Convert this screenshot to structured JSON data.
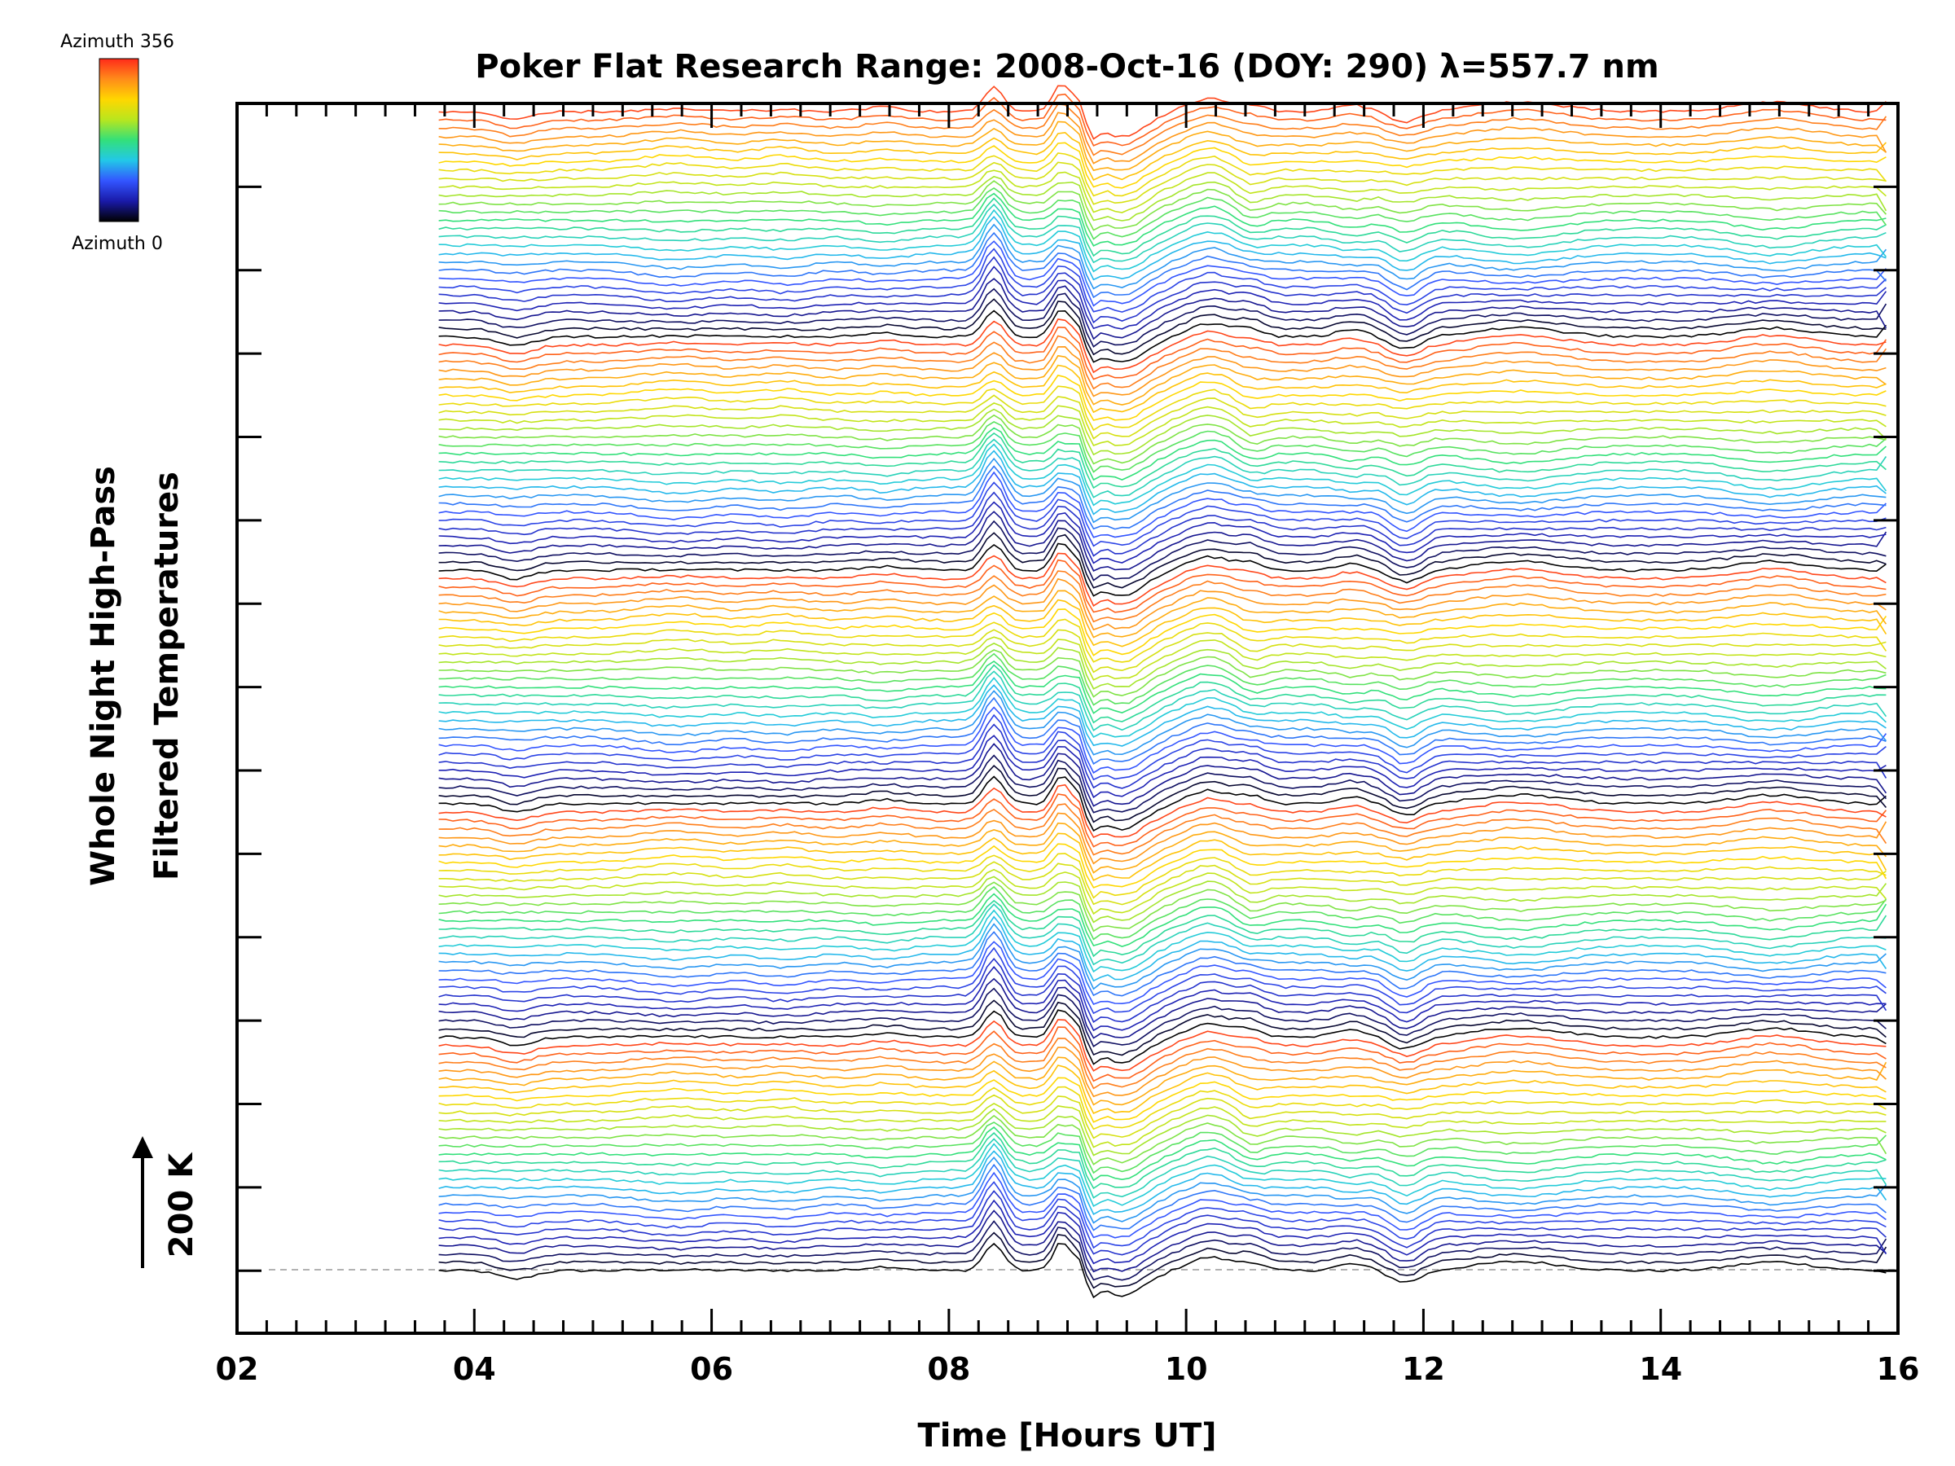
{
  "chart_data": {
    "type": "line",
    "title": "Poker Flat Research Range: 2008-Oct-16 (DOY: 290) λ=557.7 nm",
    "xlabel": "Time [Hours UT]",
    "ylabel_line1": "Whole Night High-Pass",
    "ylabel_line2": "Filtered Temperatures",
    "xlim": [
      2,
      16
    ],
    "x_tick_labels": [
      "02",
      "04",
      "06",
      "08",
      "10",
      "12",
      "14",
      "16"
    ],
    "x_tick_values": [
      2,
      4,
      6,
      8,
      10,
      12,
      14,
      16
    ],
    "ylim_K": [
      -75,
      1400
    ],
    "y_major_tick_count": 15,
    "y_major_step_K": 100,
    "scale_bar_label": "200 K",
    "scale_bar_K": 200,
    "colorbar_top_label": "Azimuth 356",
    "colorbar_bottom_label": "Azimuth 0",
    "colormap": [
      "#000000",
      "#1a1aa8",
      "#3355ff",
      "#22c8e8",
      "#33e07a",
      "#b8e61e",
      "#ffd700",
      "#ff8c1a",
      "#ff2a1a"
    ],
    "time_range_hours": [
      3.7,
      15.85
    ],
    "series_count": 140,
    "series_offset_K": 10,
    "series_period": 28,
    "azimuth_range_deg": [
      0,
      356
    ],
    "grid": false
  },
  "marks": {
    "arrow": "up-arrow"
  }
}
